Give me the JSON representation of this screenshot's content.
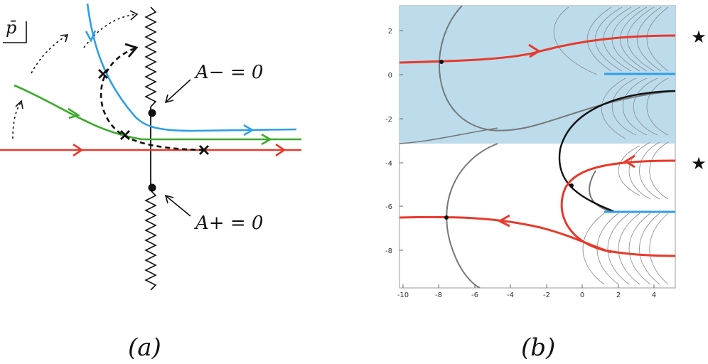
{
  "panel_a": {
    "variable_label": "p̄",
    "branch_point_upper_label": "A− = 0",
    "branch_point_lower_label": "A+ = 0",
    "caption": "(a)",
    "colors": {
      "real_axis_contour": "#e8392b",
      "green_contour": "#3aaa2a",
      "blue_contour": "#2e9fe6",
      "branch_cut": "#111111",
      "saddle_path": "#111111"
    }
  },
  "panel_b": {
    "caption": "(b)",
    "star_top": "★",
    "star_bottom": "★",
    "x_tick_labels": [
      "-10",
      "-8",
      "-6",
      "-4",
      "-2",
      "0",
      "2",
      "4"
    ],
    "y_tick_labels": [
      "2",
      "0",
      "-2",
      "-4",
      "-6",
      "-8"
    ],
    "colors": {
      "shaded_region": "#bcdcec",
      "contour": "#e8392b",
      "cut": "#2e9fe6",
      "level_lines": "#777777"
    }
  }
}
